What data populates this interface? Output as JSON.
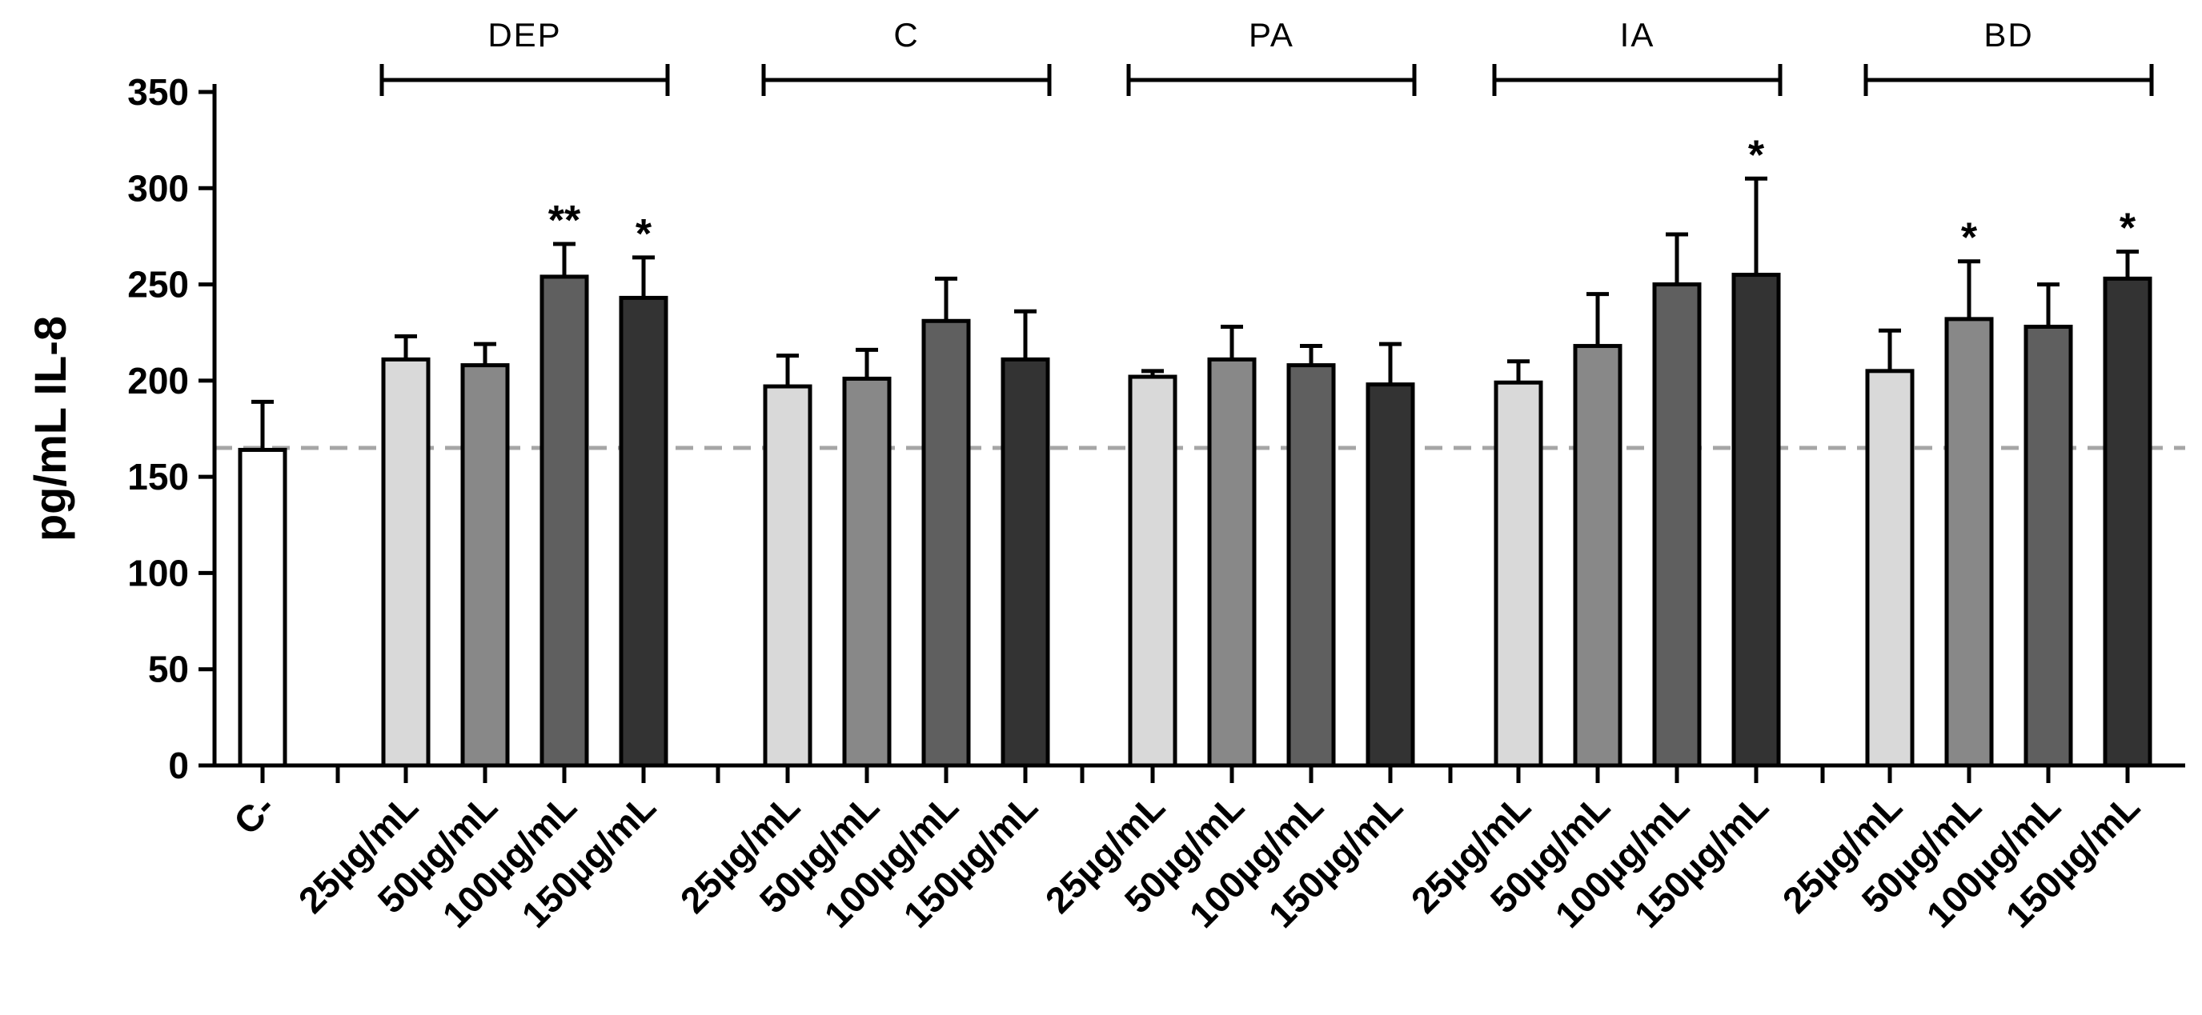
{
  "chart_data": {
    "type": "bar",
    "title": "",
    "xlabel": "",
    "ylabel": "pg/mL IL-8",
    "ylim": [
      0,
      350
    ],
    "yticks": [
      0,
      50,
      100,
      150,
      200,
      250,
      300,
      350
    ],
    "reference_line": 165,
    "colors": {
      "C-": "#ffffff",
      "25µg/mL": "#d9d9d9",
      "50µg/mL": "#888888",
      "100µg/mL": "#5f5f5f",
      "150µg/mL": "#333333"
    },
    "control": {
      "label": "C-",
      "value": 164,
      "error": 25
    },
    "groups": [
      {
        "name": "DEP",
        "bars": [
          {
            "label": "25µg/mL",
            "value": 211,
            "error": 12,
            "sig": ""
          },
          {
            "label": "50µg/mL",
            "value": 208,
            "error": 11,
            "sig": ""
          },
          {
            "label": "100µg/mL",
            "value": 254,
            "error": 17,
            "sig": "**"
          },
          {
            "label": "150µg/mL",
            "value": 243,
            "error": 21,
            "sig": "*"
          }
        ]
      },
      {
        "name": "C",
        "bars": [
          {
            "label": "25µg/mL",
            "value": 197,
            "error": 16,
            "sig": ""
          },
          {
            "label": "50µg/mL",
            "value": 201,
            "error": 15,
            "sig": ""
          },
          {
            "label": "100µg/mL",
            "value": 231,
            "error": 22,
            "sig": ""
          },
          {
            "label": "150µg/mL",
            "value": 211,
            "error": 25,
            "sig": ""
          }
        ]
      },
      {
        "name": "PA",
        "bars": [
          {
            "label": "25µg/mL",
            "value": 202,
            "error": 3,
            "sig": ""
          },
          {
            "label": "50µg/mL",
            "value": 211,
            "error": 17,
            "sig": ""
          },
          {
            "label": "100µg/mL",
            "value": 208,
            "error": 10,
            "sig": ""
          },
          {
            "label": "150µg/mL",
            "value": 198,
            "error": 21,
            "sig": ""
          }
        ]
      },
      {
        "name": "IA",
        "bars": [
          {
            "label": "25µg/mL",
            "value": 199,
            "error": 11,
            "sig": ""
          },
          {
            "label": "50µg/mL",
            "value": 218,
            "error": 27,
            "sig": ""
          },
          {
            "label": "100µg/mL",
            "value": 250,
            "error": 26,
            "sig": ""
          },
          {
            "label": "150µg/mL",
            "value": 255,
            "error": 50,
            "sig": "*"
          }
        ]
      },
      {
        "name": "BD",
        "bars": [
          {
            "label": "25µg/mL",
            "value": 205,
            "error": 21,
            "sig": ""
          },
          {
            "label": "50µg/mL",
            "value": 232,
            "error": 30,
            "sig": "*"
          },
          {
            "label": "100µg/mL",
            "value": 228,
            "error": 22,
            "sig": ""
          },
          {
            "label": "150µg/mL",
            "value": 253,
            "error": 14,
            "sig": "*"
          }
        ]
      }
    ]
  }
}
